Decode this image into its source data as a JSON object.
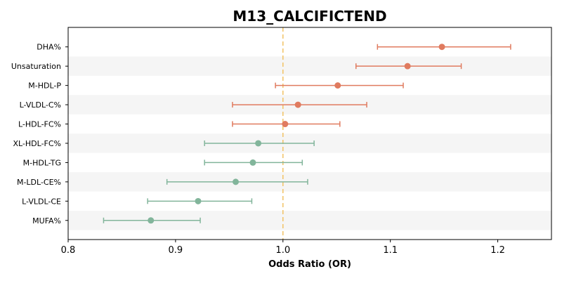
{
  "chart_data": {
    "type": "forest",
    "title": "M13_CALCIFICTEND",
    "xlabel": "Odds Ratio (OR)",
    "ylabel": "",
    "xlim": [
      0.8,
      1.25
    ],
    "xticks": [
      "0.8",
      "0.9",
      "1.0",
      "1.1",
      "1.2"
    ],
    "reference_line": 1.0,
    "row_banding": true,
    "colors": {
      "above_one": "#e07b5f",
      "below_one": "#82b59b",
      "reference": "#f2c265",
      "band": "#f5f5f5"
    },
    "points": [
      {
        "label": "DHA%",
        "or": 1.148,
        "lo": 1.088,
        "hi": 1.212
      },
      {
        "label": "Unsaturation",
        "or": 1.116,
        "lo": 1.068,
        "hi": 1.166
      },
      {
        "label": "M-HDL-P",
        "or": 1.051,
        "lo": 0.993,
        "hi": 1.112
      },
      {
        "label": "L-VLDL-C%",
        "or": 1.014,
        "lo": 0.953,
        "hi": 1.078
      },
      {
        "label": "L-HDL-FC%",
        "or": 1.002,
        "lo": 0.953,
        "hi": 1.053
      },
      {
        "label": "XL-HDL-FC%",
        "or": 0.977,
        "lo": 0.927,
        "hi": 1.029
      },
      {
        "label": "M-HDL-TG",
        "or": 0.972,
        "lo": 0.927,
        "hi": 1.018
      },
      {
        "label": "M-LDL-CE%",
        "or": 0.956,
        "lo": 0.892,
        "hi": 1.023
      },
      {
        "label": "L-VLDL-CE",
        "or": 0.921,
        "lo": 0.874,
        "hi": 0.971
      },
      {
        "label": "MUFA%",
        "or": 0.877,
        "lo": 0.833,
        "hi": 0.923
      }
    ]
  }
}
